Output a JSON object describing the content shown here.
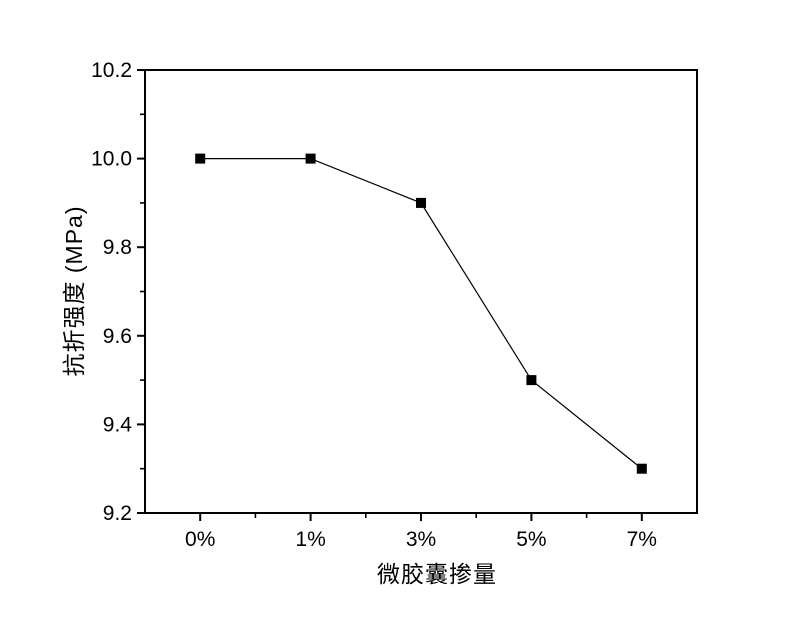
{
  "chart_data": {
    "type": "line",
    "categories": [
      "0%",
      "1%",
      "3%",
      "5%",
      "7%"
    ],
    "values": [
      10.0,
      10.0,
      9.9,
      9.5,
      9.3
    ],
    "y_tick_labels": [
      "9.2",
      "9.4",
      "9.6",
      "9.8",
      "10.0",
      "10.2"
    ],
    "xlabel": "微胶囊掺量",
    "ylabel": "抗折强度 (MPa)",
    "ylim": [
      9.2,
      10.2
    ],
    "y_major_step": 0.2,
    "y_minor_step": 0.1,
    "grid": false,
    "legend": "none",
    "marker": "filled-square",
    "line_color": "#000000",
    "marker_color": "#000000",
    "axis_color": "#000000",
    "text_color": "#000000",
    "background_color": "#ffffff"
  }
}
